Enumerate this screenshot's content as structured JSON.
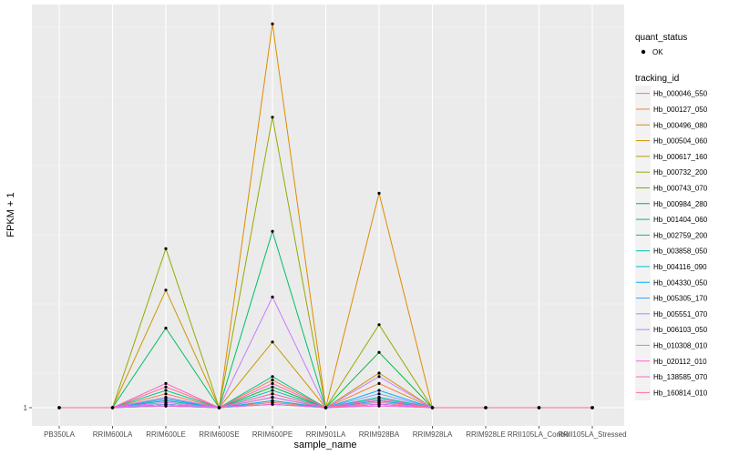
{
  "chart_data": {
    "type": "line",
    "title": "",
    "xlabel": "sample_name",
    "ylabel": "FPKM + 1",
    "y_tick_labels": [
      "1"
    ],
    "grid": true,
    "legend_position": "right",
    "categories": [
      "PB350LA",
      "RRIM600LA",
      "RRIM600LE",
      "RRIM600SE",
      "RRIM600PE",
      "RRIM901LA",
      "RRIM928BA",
      "RRIM928LA",
      "RRIM928LE",
      "RRII105LA_Control",
      "RRII105LA_Stressed"
    ],
    "legend_quant": {
      "title": "quant_status",
      "entries": [
        "OK"
      ]
    },
    "legend_tracking": {
      "title": "tracking_id"
    },
    "series": [
      {
        "name": "Hb_000046_550",
        "color": "#F8766D",
        "values": [
          1,
          1,
          1.2,
          1,
          1.15,
          1,
          1.1,
          1,
          1,
          1,
          1
        ]
      },
      {
        "name": "Hb_000127_050",
        "color": "#EE8042",
        "values": [
          1,
          1,
          1.4,
          1,
          1.8,
          1,
          1.7,
          1,
          1,
          1,
          1
        ]
      },
      {
        "name": "Hb_000496_080",
        "color": "#DE8C00",
        "values": [
          1,
          1,
          1.1,
          1,
          12.1,
          1,
          7.2,
          1,
          1,
          1,
          1
        ]
      },
      {
        "name": "Hb_000504_060",
        "color": "#CD9600",
        "values": [
          1,
          1,
          4.4,
          1,
          2.9,
          1,
          2,
          1,
          1,
          1,
          1
        ]
      },
      {
        "name": "Hb_000617_160",
        "color": "#B89E00",
        "values": [
          1,
          1,
          1.05,
          1,
          1.2,
          1,
          1.1,
          1,
          1,
          1,
          1
        ]
      },
      {
        "name": "Hb_000732_200",
        "color": "#96A900",
        "values": [
          1,
          1,
          5.6,
          1,
          9.4,
          1,
          3.4,
          1,
          1,
          1,
          1
        ]
      },
      {
        "name": "Hb_000743_070",
        "color": "#6BB100",
        "values": [
          1,
          1,
          1.1,
          1,
          1.3,
          1,
          1.2,
          1,
          1,
          1,
          1
        ]
      },
      {
        "name": "Hb_000984_280",
        "color": "#00BA38",
        "values": [
          1,
          1,
          1.3,
          1,
          1.6,
          1,
          2.6,
          1,
          1,
          1,
          1
        ]
      },
      {
        "name": "Hb_001404_060",
        "color": "#00BE67",
        "values": [
          1,
          1,
          3.3,
          1,
          6.1,
          1,
          1.3,
          1,
          1,
          1,
          1
        ]
      },
      {
        "name": "Hb_002759_200",
        "color": "#00BF96",
        "values": [
          1,
          1,
          1.5,
          1,
          1.9,
          1,
          1.2,
          1,
          1,
          1,
          1
        ]
      },
      {
        "name": "Hb_003858_050",
        "color": "#00C0AF",
        "values": [
          1,
          1,
          1.2,
          1,
          1.5,
          1,
          1.3,
          1,
          1,
          1,
          1
        ]
      },
      {
        "name": "Hb_004116_090",
        "color": "#00BCD8",
        "values": [
          1,
          1,
          1.1,
          1,
          1.3,
          1,
          1.1,
          1,
          1,
          1,
          1
        ]
      },
      {
        "name": "Hb_004330_050",
        "color": "#00B0F6",
        "values": [
          1,
          1,
          1.25,
          1,
          1.2,
          1,
          1.5,
          1,
          1,
          1,
          1
        ]
      },
      {
        "name": "Hb_005305_170",
        "color": "#35A2FF",
        "values": [
          1,
          1,
          1.05,
          1,
          1.1,
          1,
          1.2,
          1,
          1,
          1,
          1
        ]
      },
      {
        "name": "Hb_005551_070",
        "color": "#9590FF",
        "values": [
          1,
          1,
          1.1,
          1,
          1.4,
          1,
          1.4,
          1,
          1,
          1,
          1
        ]
      },
      {
        "name": "Hb_006103_050",
        "color": "#C77CFF",
        "values": [
          1,
          1,
          1.3,
          1,
          4.2,
          1,
          1.9,
          1,
          1,
          1,
          1
        ]
      },
      {
        "name": "Hb_010308_010",
        "color": "#E76BF3",
        "values": [
          1,
          1,
          1.15,
          1,
          1.3,
          1,
          1.1,
          1,
          1,
          1,
          1
        ]
      },
      {
        "name": "Hb_020112_010",
        "color": "#FA62DB",
        "values": [
          1,
          1,
          1.05,
          1,
          1.1,
          1,
          1.05,
          1,
          1,
          1,
          1
        ]
      },
      {
        "name": "Hb_138585_070",
        "color": "#FF62BC",
        "values": [
          1,
          1,
          1.7,
          1,
          1.7,
          1,
          1.25,
          1,
          1,
          1,
          1
        ]
      },
      {
        "name": "Hb_160814_010",
        "color": "#FF6C91",
        "values": [
          1,
          1,
          1.6,
          1,
          1.4,
          1,
          1.15,
          1,
          1,
          1,
          1
        ]
      }
    ]
  }
}
